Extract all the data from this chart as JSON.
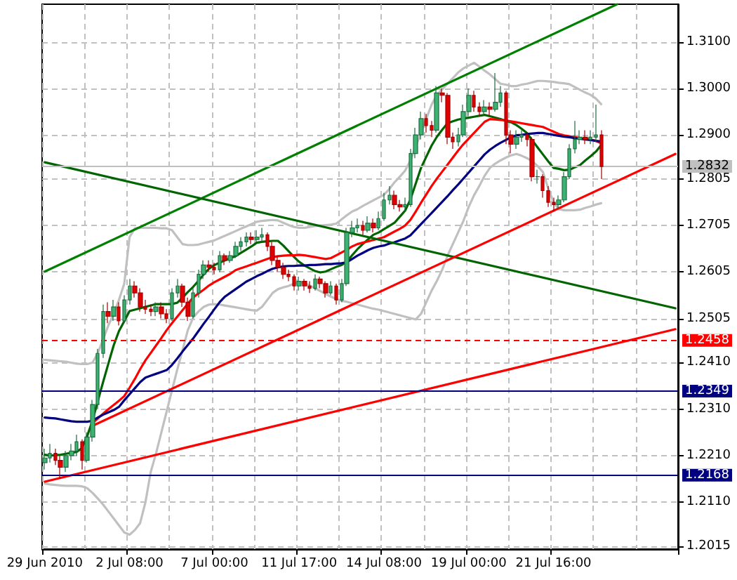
{
  "chart_data": {
    "type": "candlestick",
    "categories": [
      "29 Jun 2010",
      null,
      null,
      null,
      null,
      null,
      null,
      null,
      null,
      null,
      null,
      null,
      null,
      null,
      null,
      null,
      "2 Jul 08:00",
      null,
      null,
      null,
      null,
      null,
      null,
      null,
      null,
      null,
      null,
      null,
      null,
      null,
      null,
      null,
      "7 Jul 00:00",
      null,
      null,
      null,
      null,
      null,
      null,
      null,
      null,
      null,
      null,
      null,
      null,
      null,
      null,
      null,
      "11 Jul 17:00",
      null,
      null,
      null,
      null,
      null,
      null,
      null,
      null,
      null,
      null,
      null,
      null,
      null,
      null,
      null,
      "14 Jul 08:00",
      null,
      null,
      null,
      null,
      null,
      null,
      null,
      null,
      null,
      null,
      null,
      null,
      null,
      null,
      null,
      "19 Jul 00:00",
      null,
      null,
      null,
      null,
      null,
      null,
      null,
      null,
      null,
      null,
      null,
      null,
      null,
      null,
      null,
      "21 Jul 16:00",
      null,
      null,
      null,
      null,
      null,
      null,
      null,
      null,
      null,
      null,
      null,
      null,
      null,
      null,
      null,
      null,
      null,
      null,
      null,
      null,
      null,
      null,
      null
    ],
    "ohlc": [
      [
        1.2195,
        1.2225,
        1.218,
        1.2205
      ],
      [
        1.2205,
        1.2235,
        1.2195,
        1.2215
      ],
      [
        1.2215,
        1.2225,
        1.219,
        1.22
      ],
      [
        1.22,
        1.221,
        1.216,
        1.2185
      ],
      [
        1.2185,
        1.222,
        1.2175,
        1.221
      ],
      [
        1.221,
        1.2235,
        1.22,
        1.222
      ],
      [
        1.222,
        1.2255,
        1.221,
        1.224
      ],
      [
        1.224,
        1.2245,
        1.218,
        1.22
      ],
      [
        1.22,
        1.226,
        1.2195,
        1.225
      ],
      [
        1.225,
        1.233,
        1.224,
        1.232
      ],
      [
        1.232,
        1.244,
        1.231,
        1.243
      ],
      [
        1.243,
        1.2535,
        1.242,
        1.252
      ],
      [
        1.252,
        1.254,
        1.2495,
        1.251
      ],
      [
        1.251,
        1.2545,
        1.25,
        1.253
      ],
      [
        1.253,
        1.254,
        1.249,
        1.25
      ],
      [
        1.25,
        1.2555,
        1.2495,
        1.2545
      ],
      [
        1.2545,
        1.259,
        1.2535,
        1.2575
      ],
      [
        1.2575,
        1.2585,
        1.255,
        1.256
      ],
      [
        1.256,
        1.257,
        1.252,
        1.253
      ],
      [
        1.253,
        1.2545,
        1.2515,
        1.2525
      ],
      [
        1.2525,
        1.2535,
        1.251,
        1.252
      ],
      [
        1.252,
        1.254,
        1.251,
        1.253
      ],
      [
        1.253,
        1.254,
        1.2505,
        1.2515
      ],
      [
        1.2515,
        1.2525,
        1.2495,
        1.2505
      ],
      [
        1.2505,
        1.257,
        1.25,
        1.256
      ],
      [
        1.256,
        1.259,
        1.255,
        1.2575
      ],
      [
        1.2575,
        1.258,
        1.253,
        1.254
      ],
      [
        1.254,
        1.255,
        1.25,
        1.251
      ],
      [
        1.251,
        1.257,
        1.2505,
        1.256
      ],
      [
        1.256,
        1.261,
        1.255,
        1.26
      ],
      [
        1.26,
        1.263,
        1.259,
        1.262
      ],
      [
        1.262,
        1.263,
        1.2605,
        1.2615
      ],
      [
        1.2615,
        1.2625,
        1.26,
        1.261
      ],
      [
        1.261,
        1.265,
        1.2605,
        1.264
      ],
      [
        1.264,
        1.2645,
        1.262,
        1.263
      ],
      [
        1.263,
        1.265,
        1.2625,
        1.264
      ],
      [
        1.264,
        1.267,
        1.2635,
        1.266
      ],
      [
        1.266,
        1.268,
        1.265,
        1.267
      ],
      [
        1.267,
        1.269,
        1.266,
        1.268
      ],
      [
        1.268,
        1.269,
        1.2665,
        1.2675
      ],
      [
        1.2675,
        1.2695,
        1.267,
        1.268
      ],
      [
        1.268,
        1.27,
        1.267,
        1.2685
      ],
      [
        1.2685,
        1.269,
        1.265,
        1.266
      ],
      [
        1.266,
        1.267,
        1.262,
        1.263
      ],
      [
        1.263,
        1.264,
        1.2605,
        1.2615
      ],
      [
        1.2615,
        1.2625,
        1.259,
        1.26
      ],
      [
        1.26,
        1.261,
        1.2585,
        1.2595
      ],
      [
        1.2595,
        1.26,
        1.2565,
        1.2575
      ],
      [
        1.2575,
        1.2595,
        1.2565,
        1.2585
      ],
      [
        1.2585,
        1.259,
        1.2565,
        1.2575
      ],
      [
        1.2575,
        1.2585,
        1.256,
        1.257
      ],
      [
        1.257,
        1.26,
        1.2565,
        1.259
      ],
      [
        1.259,
        1.2595,
        1.257,
        1.258
      ],
      [
        1.258,
        1.2585,
        1.255,
        1.256
      ],
      [
        1.256,
        1.2585,
        1.2555,
        1.2575
      ],
      [
        1.2575,
        1.258,
        1.2535,
        1.2545
      ],
      [
        1.2545,
        1.259,
        1.254,
        1.258
      ],
      [
        1.258,
        1.27,
        1.2575,
        1.269
      ],
      [
        1.269,
        1.2715,
        1.268,
        1.27
      ],
      [
        1.27,
        1.272,
        1.269,
        1.2705
      ],
      [
        1.2705,
        1.2715,
        1.2685,
        1.2695
      ],
      [
        1.2695,
        1.2725,
        1.269,
        1.271
      ],
      [
        1.271,
        1.272,
        1.269,
        1.27
      ],
      [
        1.27,
        1.2735,
        1.2695,
        1.272
      ],
      [
        1.272,
        1.2775,
        1.2715,
        1.276
      ],
      [
        1.276,
        1.279,
        1.275,
        1.277
      ],
      [
        1.277,
        1.278,
        1.274,
        1.275
      ],
      [
        1.275,
        1.276,
        1.2735,
        1.2745
      ],
      [
        1.2745,
        1.2765,
        1.2735,
        1.275
      ],
      [
        1.275,
        1.287,
        1.2745,
        1.286
      ],
      [
        1.286,
        1.2915,
        1.285,
        1.29
      ],
      [
        1.29,
        1.295,
        1.289,
        1.2935
      ],
      [
        1.2935,
        1.2945,
        1.2905,
        1.292
      ],
      [
        1.292,
        1.293,
        1.2895,
        1.291
      ],
      [
        1.291,
        1.3005,
        1.2905,
        1.299
      ],
      [
        1.299,
        1.3,
        1.297,
        1.2985
      ],
      [
        1.2985,
        1.299,
        1.288,
        1.2895
      ],
      [
        1.2895,
        1.2905,
        1.287,
        1.2885
      ],
      [
        1.2885,
        1.2915,
        1.2875,
        1.29
      ],
      [
        1.29,
        1.2965,
        1.2895,
        1.295
      ],
      [
        1.295,
        1.3,
        1.294,
        1.2985
      ],
      [
        1.2985,
        1.2995,
        1.295,
        1.296
      ],
      [
        1.296,
        1.297,
        1.294,
        1.295
      ],
      [
        1.295,
        1.2975,
        1.2945,
        1.296
      ],
      [
        1.296,
        1.297,
        1.294,
        1.2955
      ],
      [
        1.2955,
        1.3033,
        1.295,
        1.297
      ],
      [
        1.297,
        1.3005,
        1.296,
        1.299
      ],
      [
        1.299,
        1.2995,
        1.288,
        1.29
      ],
      [
        1.29,
        1.291,
        1.286,
        1.288
      ],
      [
        1.288,
        1.291,
        1.287,
        1.2895
      ],
      [
        1.2895,
        1.291,
        1.2885,
        1.29
      ],
      [
        1.29,
        1.2905,
        1.2875,
        1.289
      ],
      [
        1.289,
        1.2895,
        1.28,
        1.281
      ],
      [
        1.281,
        1.2825,
        1.2795,
        1.281
      ],
      [
        1.281,
        1.2815,
        1.2765,
        1.278
      ],
      [
        1.278,
        1.279,
        1.2745,
        1.2755
      ],
      [
        1.2755,
        1.2765,
        1.2735,
        1.275
      ],
      [
        1.275,
        1.277,
        1.274,
        1.276
      ],
      [
        1.276,
        1.282,
        1.2755,
        1.281
      ],
      [
        1.281,
        1.288,
        1.2805,
        1.287
      ],
      [
        1.287,
        1.293,
        1.286,
        1.289
      ],
      [
        1.289,
        1.291,
        1.288,
        1.2895
      ],
      [
        1.2895,
        1.291,
        1.288,
        1.289
      ],
      [
        1.289,
        1.291,
        1.288,
        1.2895
      ],
      [
        1.2895,
        1.2965,
        1.2885,
        1.29
      ],
      [
        1.29,
        1.291,
        1.2805,
        1.2832
      ],
      null,
      null,
      null,
      null,
      null,
      null,
      null,
      null,
      null,
      null,
      null,
      null,
      null,
      null
    ],
    "series": [
      {
        "type": "line",
        "color": "#c0c0c0",
        "values": [
          1.2416,
          1.2415,
          1.2414,
          1.2413,
          1.2412,
          1.241,
          1.2408,
          1.2407,
          1.2407,
          1.241,
          1.243,
          1.246,
          1.249,
          1.2515,
          1.2545,
          1.258,
          1.268,
          1.2699,
          1.27,
          1.27,
          1.27,
          1.27,
          1.2699,
          1.2699,
          1.2695,
          1.268,
          1.2665,
          1.2663,
          1.2663,
          1.2664,
          1.2667,
          1.267,
          1.2673,
          1.2678,
          1.2683,
          1.2688,
          1.2693,
          1.2698,
          1.2703,
          1.2708,
          1.2713,
          1.2715,
          1.2716,
          1.2717,
          1.2716,
          1.2711,
          1.2706,
          1.2702,
          1.27,
          1.27,
          1.2702,
          1.2704,
          1.2705,
          1.2706,
          1.2707,
          1.2709,
          1.2718,
          1.2727,
          1.2735,
          1.274,
          1.2747,
          1.2753,
          1.2759,
          1.2765,
          1.2771,
          1.2783,
          1.2798,
          1.281,
          1.2823,
          1.2845,
          1.2875,
          1.2905,
          1.2935,
          1.2965,
          1.2986,
          1.2998,
          1.301,
          1.3022,
          1.3034,
          1.3043,
          1.3049,
          1.3055,
          1.3047,
          1.3038,
          1.303,
          1.302,
          1.301,
          1.3008,
          1.3005,
          1.3005,
          1.3008,
          1.301,
          1.3013,
          1.3016,
          1.3016,
          1.3015,
          1.3014,
          1.3012,
          1.3011,
          1.3009,
          1.3003,
          1.2997,
          1.2991,
          1.2986,
          1.2978,
          1.2966,
          null,
          null,
          null,
          null,
          null,
          null,
          null,
          null,
          null,
          null,
          null,
          null,
          null,
          null
        ]
      },
      {
        "type": "line",
        "color": "#c0c0c0",
        "values": [
          1.215,
          1.2148,
          1.2147,
          1.2146,
          1.2145,
          1.2145,
          1.2145,
          1.2144,
          1.214,
          1.213,
          1.2118,
          1.2105,
          1.209,
          1.2075,
          1.206,
          1.2045,
          1.204,
          1.205,
          1.2065,
          1.211,
          1.2175,
          1.2215,
          1.226,
          1.2305,
          1.235,
          1.2395,
          1.2437,
          1.248,
          1.2507,
          1.252,
          1.253,
          1.2535,
          1.2536,
          1.2535,
          1.2533,
          1.2531,
          1.2529,
          1.2527,
          1.2525,
          1.2523,
          1.2522,
          1.253,
          1.2545,
          1.256,
          1.2568,
          1.2572,
          1.2575,
          1.258,
          1.2584,
          1.2582,
          1.2576,
          1.257,
          1.2564,
          1.2558,
          1.2552,
          1.2547,
          1.2543,
          1.2541,
          1.2538,
          1.2535,
          1.2532,
          1.2529,
          1.2526,
          1.2524,
          1.2521,
          1.2518,
          1.2515,
          1.2512,
          1.2509,
          1.2506,
          1.2503,
          1.2515,
          1.254,
          1.2565,
          1.2586,
          1.261,
          1.264,
          1.2665,
          1.269,
          1.2715,
          1.2745,
          1.277,
          1.279,
          1.2812,
          1.2829,
          1.2838,
          1.2845,
          1.2851,
          1.2856,
          1.2859,
          1.2855,
          1.285,
          1.2843,
          1.2833,
          1.282,
          1.2785,
          1.2755,
          1.274,
          1.2738,
          1.2738,
          1.2738,
          1.2739,
          1.2743,
          1.2746,
          1.275,
          1.2753,
          null,
          null,
          null,
          null,
          null,
          null,
          null,
          null,
          null,
          null,
          null,
          null,
          null,
          null
        ]
      },
      {
        "type": "line",
        "color": "#006400",
        "values": [
          1.2212,
          1.221,
          1.2211,
          1.2212,
          1.2214,
          1.2216,
          1.2218,
          1.2226,
          1.2252,
          1.2285,
          1.2327,
          1.2368,
          1.2408,
          1.2447,
          1.2478,
          1.2499,
          1.2521,
          1.2524,
          1.2527,
          1.253,
          1.2533,
          1.2536,
          1.2536,
          1.2536,
          1.2536,
          1.2539,
          1.255,
          1.2562,
          1.2573,
          1.2586,
          1.26,
          1.2612,
          1.262,
          1.2625,
          1.263,
          1.2635,
          1.2639,
          1.2646,
          1.2653,
          1.266,
          1.2668,
          1.267,
          1.2671,
          1.2672,
          1.2672,
          1.2662,
          1.265,
          1.2638,
          1.2627,
          1.2619,
          1.2613,
          1.2607,
          1.2604,
          1.2606,
          1.2611,
          1.2616,
          1.262,
          1.2627,
          1.2641,
          1.2654,
          1.2665,
          1.2675,
          1.2685,
          1.269,
          1.2697,
          1.2704,
          1.2711,
          1.2724,
          1.2737,
          1.2761,
          1.2795,
          1.2829,
          1.2853,
          1.2877,
          1.2896,
          1.2911,
          1.2925,
          1.2929,
          1.2933,
          1.2935,
          1.2937,
          1.2939,
          1.2941,
          1.2943,
          1.294,
          1.2937,
          1.2934,
          1.293,
          1.2927,
          1.2921,
          1.2913,
          1.2904,
          1.2888,
          1.2873,
          1.2858,
          1.2843,
          1.2829,
          1.2827,
          1.2824,
          1.2825,
          1.283,
          1.2835,
          1.2845,
          1.2854,
          1.2864,
          1.2878,
          null,
          null,
          null,
          null,
          null,
          null,
          null,
          null,
          null,
          null,
          null,
          null,
          null,
          null
        ]
      },
      {
        "type": "line",
        "color": "#ff0000",
        "values": [
          null,
          null,
          null,
          null,
          null,
          null,
          null,
          null,
          null,
          1.228,
          1.229,
          1.23,
          1.231,
          1.2319,
          1.2328,
          1.2338,
          1.2356,
          1.2375,
          1.2396,
          1.2415,
          1.2431,
          1.2447,
          1.2463,
          1.248,
          1.2495,
          1.2509,
          1.2523,
          1.2537,
          1.255,
          1.2559,
          1.2567,
          1.2576,
          1.2583,
          1.2589,
          1.2595,
          1.2601,
          1.2609,
          1.2613,
          1.2617,
          1.2621,
          1.2625,
          1.2629,
          1.2633,
          1.2637,
          1.2639,
          1.264,
          1.2641,
          1.2641,
          1.2642,
          1.2641,
          1.2639,
          1.2637,
          1.2635,
          1.2633,
          1.2635,
          1.2641,
          1.2647,
          1.2653,
          1.266,
          1.2665,
          1.2668,
          1.2671,
          1.2674,
          1.2677,
          1.268,
          1.2686,
          1.2692,
          1.2698,
          1.2705,
          1.2717,
          1.2735,
          1.2754,
          1.2772,
          1.279,
          1.2806,
          1.2821,
          1.2836,
          1.2851,
          1.2866,
          1.288,
          1.2892,
          1.2904,
          1.2916,
          1.2928,
          1.2934,
          1.2933,
          1.2932,
          1.2931,
          1.2929,
          1.2927,
          1.2925,
          1.2923,
          1.2921,
          1.2919,
          1.2917,
          1.2912,
          1.2907,
          1.2902,
          1.2899,
          1.2897,
          1.2895,
          1.2893,
          1.2891,
          1.289,
          1.2887,
          1.2882,
          null,
          null,
          null,
          null,
          null,
          null,
          null,
          null,
          null,
          null,
          null,
          null,
          null,
          null
        ]
      },
      {
        "type": "line",
        "color": "#000080",
        "values": [
          1.2292,
          1.2291,
          1.229,
          1.2288,
          1.2286,
          1.2284,
          1.2283,
          1.2283,
          1.2283,
          1.2285,
          1.2292,
          1.2298,
          1.2303,
          1.2308,
          1.2315,
          1.2329,
          1.2342,
          1.2355,
          1.2368,
          1.2378,
          1.2382,
          1.2386,
          1.239,
          1.2394,
          1.2405,
          1.2419,
          1.2434,
          1.2448,
          1.2462,
          1.2478,
          1.2494,
          1.2509,
          1.2525,
          1.254,
          1.2552,
          1.256,
          1.2568,
          1.2576,
          1.2584,
          1.259,
          1.2596,
          1.2601,
          1.2607,
          1.2612,
          1.2615,
          1.2617,
          1.2618,
          1.2618,
          1.2619,
          1.2619,
          1.262,
          1.262,
          1.2621,
          1.2622,
          1.2622,
          1.2623,
          1.2624,
          1.2626,
          1.2633,
          1.264,
          1.2646,
          1.2652,
          1.2657,
          1.266,
          1.2662,
          1.2666,
          1.2669,
          1.2673,
          1.2677,
          1.2684,
          1.2696,
          1.2708,
          1.272,
          1.2732,
          1.2744,
          1.2756,
          1.2768,
          1.2781,
          1.2793,
          1.2806,
          1.2819,
          1.2832,
          1.2845,
          1.2858,
          1.2868,
          1.2876,
          1.2883,
          1.2889,
          1.2895,
          1.2899,
          1.29,
          1.2902,
          1.2903,
          1.2904,
          1.2904,
          1.2902,
          1.29,
          1.2898,
          1.2896,
          1.2895,
          1.2893,
          1.2892,
          1.289,
          1.2889,
          1.2887,
          1.2886,
          null,
          null,
          null,
          null,
          null,
          null,
          null,
          null,
          null,
          null,
          null,
          null,
          null,
          null
        ]
      },
      {
        "type": "line",
        "color": "#008000",
        "values": [
          1.2606,
          null,
          null,
          null,
          null,
          null,
          null,
          null,
          null,
          null,
          null,
          null,
          null,
          null,
          null,
          null,
          null,
          null,
          null,
          null,
          null,
          null,
          null,
          null,
          null,
          null,
          null,
          null,
          null,
          null,
          null,
          null,
          null,
          null,
          null,
          null,
          null,
          null,
          null,
          null,
          null,
          null,
          null,
          null,
          null,
          null,
          null,
          null,
          null,
          null,
          null,
          null,
          null,
          null,
          null,
          null,
          null,
          null,
          null,
          null,
          null,
          null,
          null,
          null,
          null,
          null,
          null,
          null,
          null,
          null,
          null,
          null,
          null,
          null,
          null,
          null,
          null,
          null,
          null,
          null,
          null,
          null,
          null,
          null,
          null,
          null,
          null,
          null,
          null,
          null,
          null,
          null,
          null,
          null,
          null,
          null,
          null,
          null,
          null,
          null,
          null,
          null,
          null,
          null,
          null,
          null,
          null,
          null,
          1.3181,
          null,
          null,
          null,
          null,
          null,
          null,
          null,
          null,
          null,
          null,
          null
        ]
      },
      {
        "type": "line",
        "color": "#006400",
        "values": [
          1.2841,
          null,
          null,
          null,
          null,
          null,
          null,
          null,
          null,
          null,
          null,
          null,
          null,
          null,
          null,
          null,
          null,
          null,
          null,
          null,
          null,
          null,
          null,
          null,
          null,
          null,
          null,
          null,
          null,
          null,
          null,
          null,
          null,
          null,
          null,
          null,
          null,
          null,
          null,
          null,
          null,
          null,
          null,
          null,
          null,
          null,
          null,
          null,
          null,
          null,
          null,
          null,
          null,
          null,
          null,
          null,
          null,
          null,
          null,
          null,
          null,
          null,
          null,
          null,
          null,
          null,
          null,
          null,
          null,
          null,
          null,
          null,
          null,
          null,
          null,
          null,
          null,
          null,
          null,
          null,
          null,
          null,
          null,
          null,
          null,
          null,
          null,
          null,
          null,
          null,
          null,
          null,
          null,
          null,
          null,
          null,
          null,
          null,
          null,
          null,
          null,
          null,
          null,
          null,
          null,
          null,
          null,
          null,
          null,
          null,
          null,
          null,
          null,
          null,
          null,
          null,
          null,
          null,
          null,
          1.2527
        ]
      },
      {
        "type": "line",
        "color": "#ff0000",
        "values": [
          null,
          null,
          null,
          null,
          null,
          null,
          null,
          null,
          null,
          1.2274,
          null,
          null,
          null,
          null,
          null,
          null,
          null,
          null,
          null,
          null,
          null,
          null,
          null,
          null,
          null,
          null,
          null,
          null,
          null,
          null,
          null,
          null,
          null,
          null,
          null,
          null,
          null,
          null,
          null,
          null,
          null,
          null,
          null,
          null,
          null,
          null,
          null,
          null,
          null,
          null,
          null,
          null,
          null,
          null,
          null,
          null,
          null,
          null,
          null,
          null,
          null,
          null,
          null,
          null,
          null,
          null,
          null,
          null,
          null,
          null,
          null,
          null,
          null,
          null,
          null,
          null,
          null,
          null,
          null,
          null,
          null,
          null,
          null,
          null,
          null,
          null,
          null,
          null,
          null,
          null,
          null,
          null,
          null,
          null,
          null,
          null,
          null,
          null,
          null,
          null,
          null,
          null,
          null,
          null,
          null,
          null,
          null,
          null,
          null,
          null,
          null,
          null,
          null,
          null,
          null,
          null,
          null,
          null,
          null,
          1.2859
        ]
      },
      {
        "type": "line",
        "color": "#ff0000",
        "values": [
          1.2154,
          null,
          null,
          null,
          null,
          null,
          null,
          null,
          null,
          null,
          null,
          null,
          null,
          null,
          null,
          null,
          null,
          null,
          null,
          null,
          null,
          null,
          null,
          null,
          null,
          null,
          null,
          null,
          null,
          null,
          null,
          null,
          null,
          null,
          null,
          null,
          null,
          null,
          null,
          null,
          null,
          null,
          null,
          null,
          null,
          null,
          null,
          null,
          null,
          null,
          null,
          null,
          null,
          null,
          null,
          null,
          null,
          null,
          null,
          null,
          null,
          null,
          null,
          null,
          null,
          null,
          null,
          null,
          null,
          null,
          null,
          null,
          null,
          null,
          null,
          null,
          null,
          null,
          null,
          null,
          null,
          null,
          null,
          null,
          null,
          null,
          null,
          null,
          null,
          null,
          null,
          null,
          null,
          null,
          null,
          null,
          null,
          null,
          null,
          null,
          null,
          null,
          null,
          null,
          null,
          null,
          null,
          null,
          null,
          null,
          null,
          null,
          null,
          null,
          null,
          null,
          null,
          null,
          null,
          1.2482
        ]
      }
    ],
    "ylim": [
      1.2009,
      1.3181
    ],
    "yticks": [
      1.2015,
      {
        "value": 1.211,
        "label": "1.2110"
      },
      {
        "value": 1.221,
        "label": "1.2210"
      },
      {
        "value": 1.231,
        "label": "1.2310"
      },
      {
        "value": 1.241,
        "label": "1.2410"
      },
      1.2505,
      1.2605,
      1.2705,
      1.2805,
      {
        "value": 1.29,
        "label": "1.2900"
      },
      {
        "value": 1.3,
        "label": "1.3000"
      },
      {
        "value": 1.31,
        "label": "1.3100"
      }
    ],
    "ref_lines": [
      {
        "axis": "y",
        "value": 1.2832,
        "label": "1.2832",
        "color": "#c0c0c0"
      },
      {
        "axis": "y",
        "value": 1.2458,
        "label": "1.2458",
        "color": "#ff0000",
        "line_style": "dashed"
      },
      {
        "axis": "y",
        "value": 1.2349,
        "label": "1.2349",
        "color": "#000080"
      },
      {
        "axis": "y",
        "value": 1.2168,
        "label": "1.2168",
        "color": "#000080"
      }
    ],
    "grid": true,
    "marker": "none"
  }
}
